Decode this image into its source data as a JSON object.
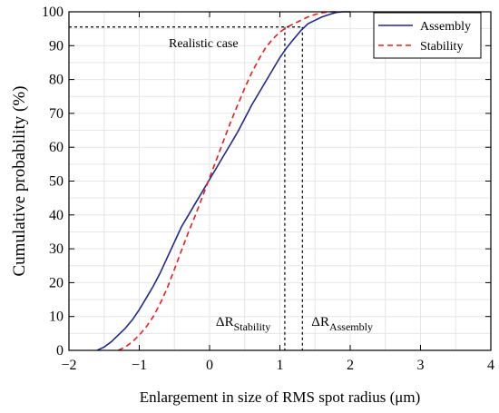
{
  "chart_data": {
    "type": "line",
    "xlabel": "Enlargement in size of RMS spot radius (μm)",
    "ylabel": "Cumulative probability (%)",
    "xlim": [
      -2,
      4
    ],
    "ylim": [
      0,
      100
    ],
    "xticks": [
      -2,
      -1,
      0,
      1,
      2,
      3,
      4
    ],
    "yticks": [
      0,
      10,
      20,
      30,
      40,
      50,
      60,
      70,
      80,
      90,
      100
    ],
    "grid": true,
    "legend_position": "top-right",
    "series": [
      {
        "name": "Assembly",
        "color": "#1f2a8a",
        "style": "solid",
        "points": [
          [
            -1.6,
            0
          ],
          [
            -1.5,
            1
          ],
          [
            -1.4,
            2.5
          ],
          [
            -1.3,
            4.5
          ],
          [
            -1.2,
            6.5
          ],
          [
            -1.1,
            9
          ],
          [
            -1.0,
            12
          ],
          [
            -0.9,
            15.5
          ],
          [
            -0.8,
            19
          ],
          [
            -0.7,
            23
          ],
          [
            -0.6,
            27.5
          ],
          [
            -0.5,
            32
          ],
          [
            -0.4,
            36.5
          ],
          [
            -0.3,
            40
          ],
          [
            -0.2,
            43.5
          ],
          [
            -0.1,
            47
          ],
          [
            0.0,
            50.5
          ],
          [
            0.1,
            54
          ],
          [
            0.2,
            57.5
          ],
          [
            0.3,
            61
          ],
          [
            0.4,
            64.5
          ],
          [
            0.5,
            68.5
          ],
          [
            0.6,
            72.5
          ],
          [
            0.7,
            76
          ],
          [
            0.8,
            79.5
          ],
          [
            0.9,
            83
          ],
          [
            1.0,
            86.5
          ],
          [
            1.1,
            89.5
          ],
          [
            1.2,
            92
          ],
          [
            1.3,
            94.5
          ],
          [
            1.4,
            96.5
          ],
          [
            1.5,
            97.5
          ],
          [
            1.6,
            98.5
          ],
          [
            1.7,
            99.2
          ],
          [
            1.8,
            99.8
          ],
          [
            1.9,
            100
          ],
          [
            2.0,
            100
          ]
        ]
      },
      {
        "name": "Stability",
        "color": "#ee1c1c",
        "style": "dashed",
        "points": [
          [
            -1.3,
            0
          ],
          [
            -1.2,
            1
          ],
          [
            -1.1,
            2.5
          ],
          [
            -1.0,
            4.5
          ],
          [
            -0.9,
            7
          ],
          [
            -0.8,
            10
          ],
          [
            -0.7,
            14
          ],
          [
            -0.6,
            18.5
          ],
          [
            -0.5,
            24
          ],
          [
            -0.4,
            29.5
          ],
          [
            -0.3,
            35
          ],
          [
            -0.2,
            40
          ],
          [
            -0.1,
            45.5
          ],
          [
            0.0,
            51
          ],
          [
            0.1,
            56.5
          ],
          [
            0.2,
            62
          ],
          [
            0.3,
            67.5
          ],
          [
            0.4,
            72.5
          ],
          [
            0.5,
            77.5
          ],
          [
            0.6,
            82
          ],
          [
            0.7,
            86
          ],
          [
            0.8,
            89.5
          ],
          [
            0.9,
            92
          ],
          [
            1.0,
            94
          ],
          [
            1.1,
            95.5
          ],
          [
            1.2,
            96.5
          ],
          [
            1.3,
            97.5
          ],
          [
            1.4,
            98.5
          ],
          [
            1.5,
            99.2
          ],
          [
            1.6,
            99.7
          ],
          [
            1.7,
            100
          ],
          [
            1.8,
            100
          ]
        ]
      }
    ],
    "reference_lines": {
      "probability": 95.5,
      "stability_x": 1.07,
      "assembly_x": 1.32
    },
    "annotations": {
      "realistic": "Realistic case",
      "delta": "ΔR",
      "sub_stability": "Stability",
      "sub_assembly": "Assembly"
    }
  }
}
